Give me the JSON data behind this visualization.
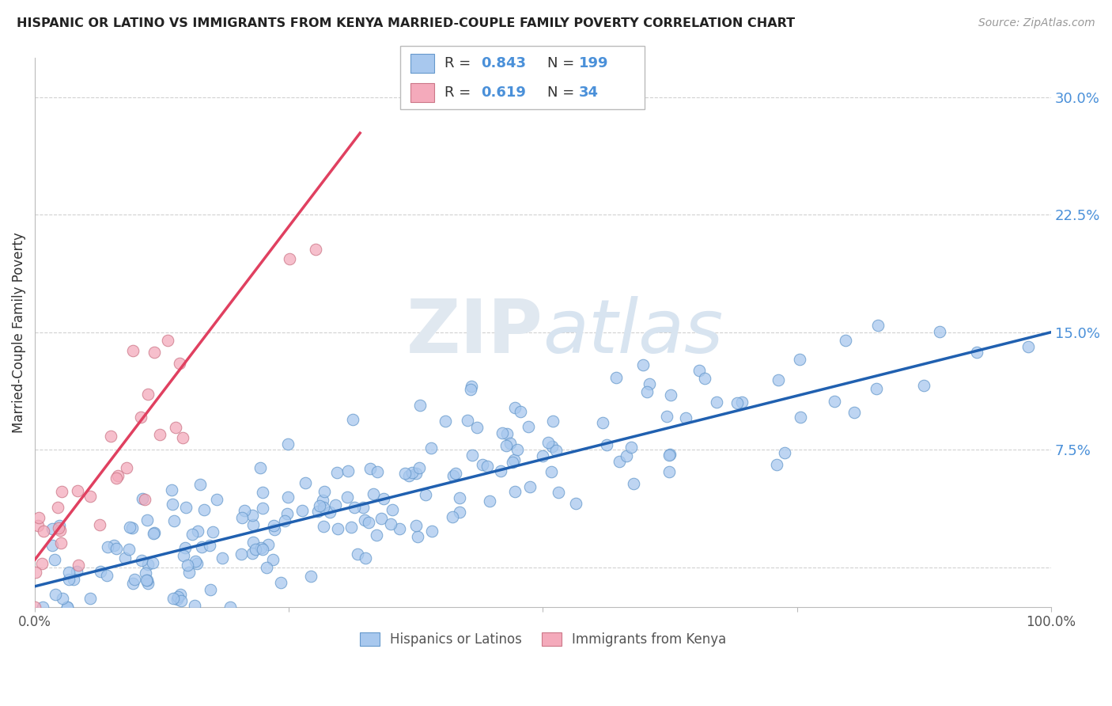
{
  "title": "HISPANIC OR LATINO VS IMMIGRANTS FROM KENYA MARRIED-COUPLE FAMILY POVERTY CORRELATION CHART",
  "source": "Source: ZipAtlas.com",
  "ylabel": "Married-Couple Family Poverty",
  "xlabel": "",
  "xlim": [
    0,
    1.0
  ],
  "ylim": [
    -0.025,
    0.325
  ],
  "xticks": [
    0.0,
    0.25,
    0.5,
    0.75,
    1.0
  ],
  "xticklabels": [
    "0.0%",
    "",
    "",
    "",
    "100.0%"
  ],
  "yticks": [
    0.0,
    0.075,
    0.15,
    0.225,
    0.3
  ],
  "yticklabels": [
    "",
    "7.5%",
    "15.0%",
    "22.5%",
    "30.0%"
  ],
  "blue_R": 0.843,
  "blue_N": 199,
  "pink_R": 0.619,
  "pink_N": 34,
  "blue_color": "#A8C8EE",
  "pink_color": "#F4AABB",
  "blue_line_color": "#2060B0",
  "pink_line_color": "#E04060",
  "grid_color": "#CCCCCC",
  "watermark_zip": "ZIP",
  "watermark_atlas": "atlas",
  "legend_label_blue": "Hispanics or Latinos",
  "legend_label_pink": "Immigrants from Kenya",
  "blue_intercept": -0.012,
  "blue_slope": 0.162,
  "pink_intercept": 0.005,
  "pink_slope": 0.85,
  "blue_seed": 42,
  "pink_seed": 7
}
